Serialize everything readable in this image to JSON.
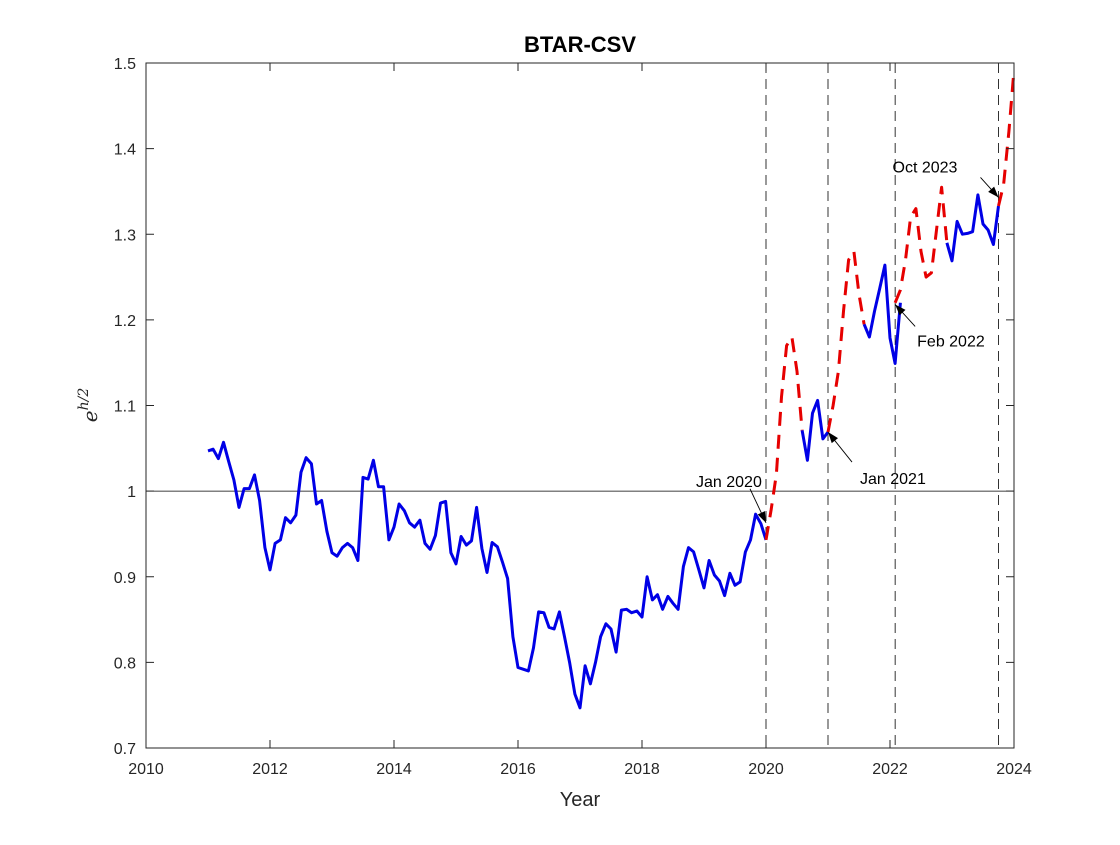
{
  "chart_data": {
    "type": "line",
    "title": "BTAR-CSV",
    "xlabel": "Year",
    "ylabel": {
      "base": "e",
      "exponent": "h/2"
    },
    "xlim": [
      2010,
      2024
    ],
    "ylim": [
      0.7,
      1.5
    ],
    "x_ticks": [
      "2010",
      "2012",
      "2014",
      "2016",
      "2018",
      "2020",
      "2022",
      "2024"
    ],
    "y_ticks": [
      "0.7",
      "0.8",
      "0.9",
      "1",
      "1.1",
      "1.2",
      "1.3",
      "1.4",
      "1.5"
    ],
    "grid": false,
    "reference_line": {
      "y": 1
    },
    "vlines": [
      2020.0,
      2021.0,
      2022.083,
      2023.75
    ],
    "series": [
      {
        "style": "solid",
        "color": "#0000e6",
        "segments": [
          [
            [
              2011.0,
              1.047
            ],
            [
              2011.083,
              1.049
            ],
            [
              2011.167,
              1.038
            ],
            [
              2011.25,
              1.057
            ],
            [
              2011.333,
              1.035
            ],
            [
              2011.417,
              1.013
            ],
            [
              2011.5,
              0.981
            ],
            [
              2011.583,
              1.003
            ],
            [
              2011.667,
              1.003
            ],
            [
              2011.75,
              1.019
            ],
            [
              2011.833,
              0.989
            ],
            [
              2011.917,
              0.934
            ],
            [
              2012.0,
              0.908
            ],
            [
              2012.083,
              0.939
            ],
            [
              2012.167,
              0.943
            ],
            [
              2012.25,
              0.969
            ],
            [
              2012.333,
              0.963
            ],
            [
              2012.417,
              0.972
            ],
            [
              2012.5,
              1.022
            ],
            [
              2012.583,
              1.039
            ],
            [
              2012.667,
              1.032
            ],
            [
              2012.75,
              0.985
            ],
            [
              2012.833,
              0.989
            ],
            [
              2012.917,
              0.953
            ],
            [
              2013.0,
              0.928
            ],
            [
              2013.083,
              0.924
            ],
            [
              2013.167,
              0.934
            ],
            [
              2013.25,
              0.939
            ],
            [
              2013.333,
              0.934
            ],
            [
              2013.417,
              0.919
            ],
            [
              2013.5,
              1.016
            ],
            [
              2013.583,
              1.014
            ],
            [
              2013.667,
              1.036
            ],
            [
              2013.75,
              1.005
            ],
            [
              2013.833,
              1.005
            ],
            [
              2013.917,
              0.943
            ],
            [
              2014.0,
              0.958
            ],
            [
              2014.083,
              0.985
            ],
            [
              2014.167,
              0.977
            ],
            [
              2014.25,
              0.963
            ],
            [
              2014.333,
              0.958
            ],
            [
              2014.417,
              0.966
            ],
            [
              2014.5,
              0.939
            ],
            [
              2014.583,
              0.932
            ],
            [
              2014.667,
              0.948
            ],
            [
              2014.75,
              0.986
            ],
            [
              2014.833,
              0.988
            ],
            [
              2014.917,
              0.928
            ],
            [
              2015.0,
              0.915
            ],
            [
              2015.083,
              0.947
            ],
            [
              2015.167,
              0.937
            ],
            [
              2015.25,
              0.942
            ],
            [
              2015.333,
              0.981
            ],
            [
              2015.417,
              0.933
            ],
            [
              2015.5,
              0.905
            ],
            [
              2015.583,
              0.94
            ],
            [
              2015.667,
              0.935
            ],
            [
              2015.75,
              0.917
            ],
            [
              2015.833,
              0.898
            ],
            [
              2015.917,
              0.83
            ],
            [
              2016.0,
              0.794
            ],
            [
              2016.083,
              0.792
            ],
            [
              2016.167,
              0.79
            ],
            [
              2016.25,
              0.817
            ],
            [
              2016.333,
              0.859
            ],
            [
              2016.417,
              0.858
            ],
            [
              2016.5,
              0.841
            ],
            [
              2016.583,
              0.839
            ],
            [
              2016.667,
              0.859
            ],
            [
              2016.75,
              0.83
            ],
            [
              2016.833,
              0.8
            ],
            [
              2016.917,
              0.763
            ],
            [
              2017.0,
              0.747
            ],
            [
              2017.083,
              0.796
            ],
            [
              2017.167,
              0.775
            ],
            [
              2017.25,
              0.8
            ],
            [
              2017.333,
              0.83
            ],
            [
              2017.417,
              0.845
            ],
            [
              2017.5,
              0.839
            ],
            [
              2017.583,
              0.812
            ],
            [
              2017.667,
              0.861
            ],
            [
              2017.75,
              0.862
            ],
            [
              2017.833,
              0.858
            ],
            [
              2017.917,
              0.86
            ],
            [
              2018.0,
              0.853
            ],
            [
              2018.083,
              0.9
            ],
            [
              2018.167,
              0.873
            ],
            [
              2018.25,
              0.879
            ],
            [
              2018.333,
              0.862
            ],
            [
              2018.417,
              0.877
            ],
            [
              2018.5,
              0.869
            ],
            [
              2018.583,
              0.862
            ],
            [
              2018.667,
              0.912
            ],
            [
              2018.75,
              0.934
            ],
            [
              2018.833,
              0.929
            ],
            [
              2018.917,
              0.908
            ],
            [
              2019.0,
              0.887
            ],
            [
              2019.083,
              0.919
            ],
            [
              2019.167,
              0.902
            ],
            [
              2019.25,
              0.895
            ],
            [
              2019.333,
              0.878
            ],
            [
              2019.417,
              0.904
            ],
            [
              2019.5,
              0.89
            ],
            [
              2019.583,
              0.894
            ],
            [
              2019.667,
              0.929
            ],
            [
              2019.75,
              0.943
            ],
            [
              2019.833,
              0.973
            ],
            [
              2019.917,
              0.962
            ],
            [
              2020.0,
              0.943
            ]
          ],
          [
            [
              2020.583,
              1.071
            ],
            [
              2020.667,
              1.036
            ],
            [
              2020.75,
              1.091
            ],
            [
              2020.833,
              1.106
            ],
            [
              2020.917,
              1.061
            ],
            [
              2021.0,
              1.069
            ]
          ],
          [
            [
              2021.583,
              1.195
            ],
            [
              2021.667,
              1.18
            ],
            [
              2021.75,
              1.21
            ],
            [
              2021.833,
              1.236
            ],
            [
              2021.917,
              1.264
            ],
            [
              2022.0,
              1.179
            ],
            [
              2022.083,
              1.149
            ],
            [
              2022.167,
              1.22
            ]
          ],
          [
            [
              2022.917,
              1.29
            ],
            [
              2023.0,
              1.269
            ],
            [
              2023.083,
              1.315
            ],
            [
              2023.167,
              1.3
            ],
            [
              2023.25,
              1.301
            ],
            [
              2023.333,
              1.303
            ],
            [
              2023.417,
              1.346
            ],
            [
              2023.5,
              1.312
            ],
            [
              2023.583,
              1.305
            ],
            [
              2023.667,
              1.288
            ],
            [
              2023.75,
              1.333
            ]
          ]
        ]
      },
      {
        "style": "dashed",
        "color": "#e60000",
        "segments": [
          [
            [
              2020.0,
              0.943
            ],
            [
              2020.083,
              0.978
            ],
            [
              2020.167,
              1.02
            ],
            [
              2020.25,
              1.11
            ],
            [
              2020.333,
              1.17
            ],
            [
              2020.417,
              1.18
            ],
            [
              2020.5,
              1.14
            ],
            [
              2020.583,
              1.071
            ]
          ],
          [
            [
              2021.0,
              1.069
            ],
            [
              2021.083,
              1.1
            ],
            [
              2021.167,
              1.14
            ],
            [
              2021.25,
              1.21
            ],
            [
              2021.333,
              1.27
            ],
            [
              2021.417,
              1.28
            ],
            [
              2021.5,
              1.23
            ],
            [
              2021.583,
              1.195
            ]
          ],
          [
            [
              2022.083,
              1.22
            ],
            [
              2022.167,
              1.235
            ],
            [
              2022.25,
              1.27
            ],
            [
              2022.333,
              1.32
            ],
            [
              2022.417,
              1.33
            ],
            [
              2022.5,
              1.28
            ],
            [
              2022.583,
              1.25
            ],
            [
              2022.667,
              1.255
            ],
            [
              2022.75,
              1.305
            ],
            [
              2022.833,
              1.355
            ],
            [
              2022.917,
              1.29
            ]
          ],
          [
            [
              2023.75,
              1.333
            ],
            [
              2023.833,
              1.358
            ],
            [
              2023.917,
              1.42
            ],
            [
              2024.0,
              1.492
            ]
          ]
        ]
      }
    ],
    "annotations": [
      {
        "text": "Jan 2020",
        "x": 2020.0,
        "y": 0.963
      },
      {
        "text": "Jan 2021",
        "x": 2021.0,
        "y": 1.069
      },
      {
        "text": "Feb 2022",
        "x": 2022.083,
        "y": 1.218
      },
      {
        "text": "Oct 2023",
        "x": 2023.75,
        "y": 1.343
      }
    ]
  }
}
